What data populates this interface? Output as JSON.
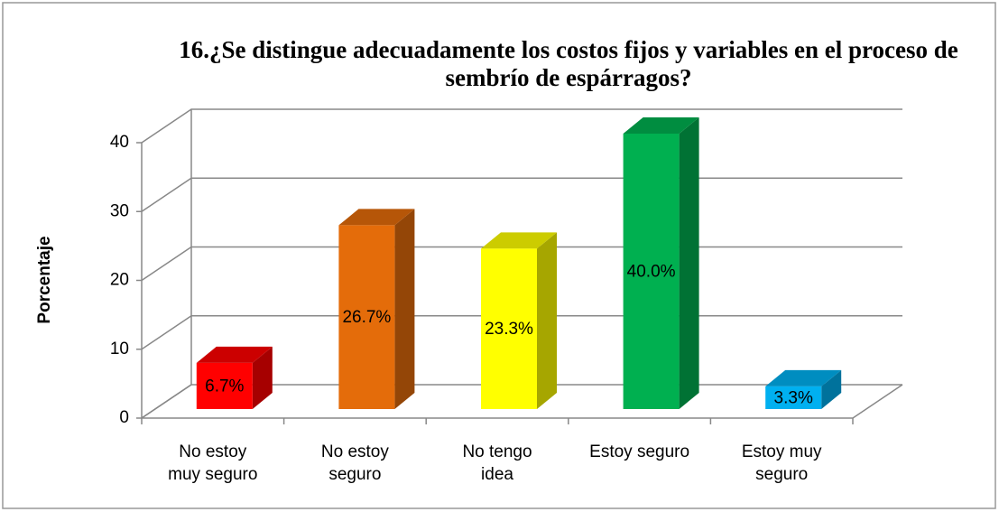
{
  "chart_data": {
    "type": "bar3d",
    "title": "16.¿Se distingue adecuadamente los costos fijos y variables  en el proceso de sembrío de espárragos?",
    "y_label": "Porcentaje",
    "categories": [
      "No estoy muy seguro",
      "No estoy seguro",
      "No tengo idea",
      "Estoy seguro",
      "Estoy muy seguro"
    ],
    "values": [
      6.7,
      26.7,
      23.3,
      40.0,
      3.3
    ],
    "value_labels": [
      "6.7%",
      "26.7%",
      "23.3%",
      "40.0%",
      "3.3%"
    ],
    "colors": [
      "#ff0000",
      "#e46c0a",
      "#ffff00",
      "#00b050",
      "#00b0f0"
    ],
    "ylim": [
      0,
      40
    ],
    "yticks": [
      0,
      10,
      20,
      30,
      40
    ],
    "grid": true
  }
}
